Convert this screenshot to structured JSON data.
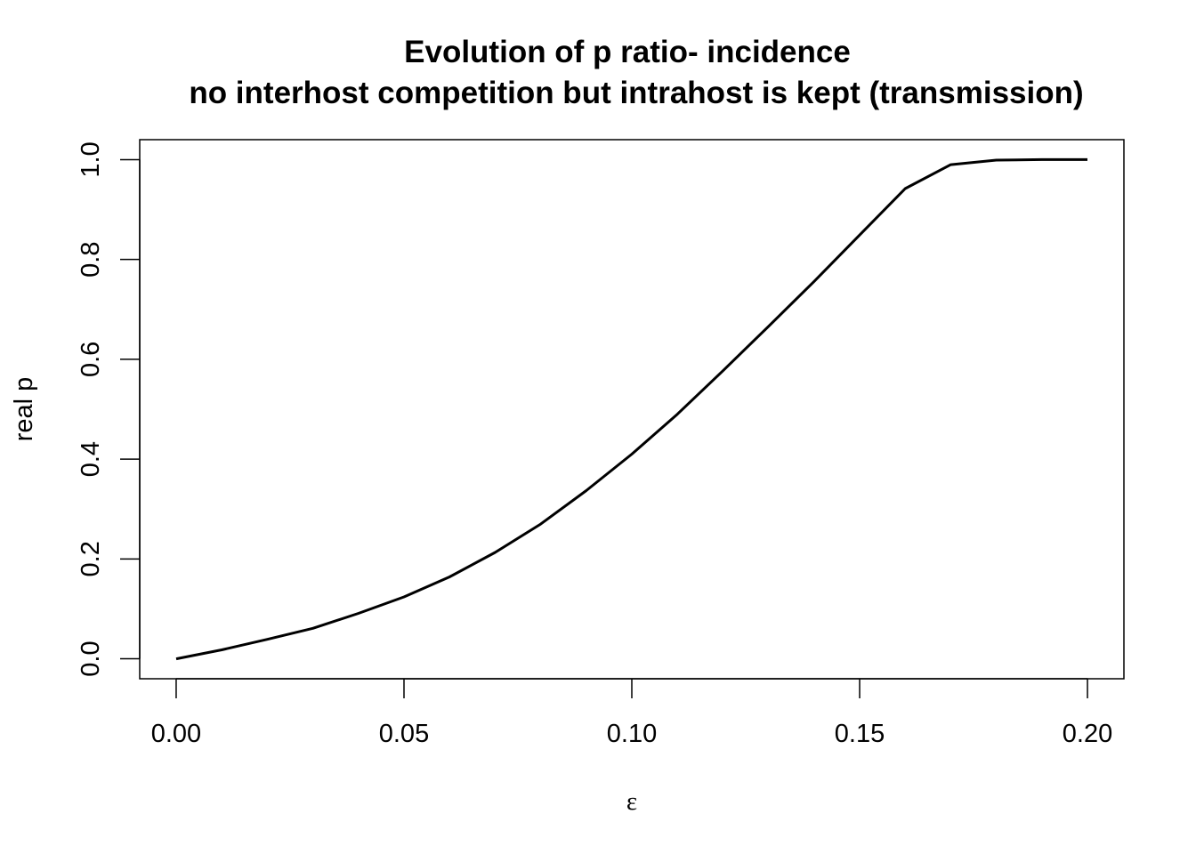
{
  "chart_data": {
    "type": "line",
    "title": "Evolution of p ratio- incidence",
    "subtitle": "no interhost competition but intrahost is kept (transmission)",
    "xlabel": "ε",
    "ylabel": "real p",
    "xlim": [
      -0.008,
      0.208
    ],
    "ylim": [
      -0.04,
      1.04
    ],
    "x_ticks": [
      0.0,
      0.05,
      0.1,
      0.15,
      0.2
    ],
    "x_tick_labels": [
      "0.00",
      "0.05",
      "0.10",
      "0.15",
      "0.20"
    ],
    "y_ticks": [
      0.0,
      0.2,
      0.4,
      0.6,
      0.8,
      1.0
    ],
    "y_tick_labels": [
      "0.0",
      "0.2",
      "0.4",
      "0.6",
      "0.8",
      "1.0"
    ],
    "grid": false,
    "line_color": "#000000",
    "series": [
      {
        "x": [
          0.0,
          0.01,
          0.02,
          0.03,
          0.04,
          0.05,
          0.06,
          0.07,
          0.08,
          0.09,
          0.1,
          0.11,
          0.12,
          0.13,
          0.14,
          0.15,
          0.16,
          0.17,
          0.18,
          0.19,
          0.2
        ],
        "values": [
          0.0,
          0.018,
          0.039,
          0.061,
          0.091,
          0.124,
          0.164,
          0.213,
          0.27,
          0.337,
          0.41,
          0.49,
          0.577,
          0.666,
          0.756,
          0.849,
          0.942,
          0.99,
          0.999,
          1.0,
          1.0
        ]
      }
    ]
  }
}
